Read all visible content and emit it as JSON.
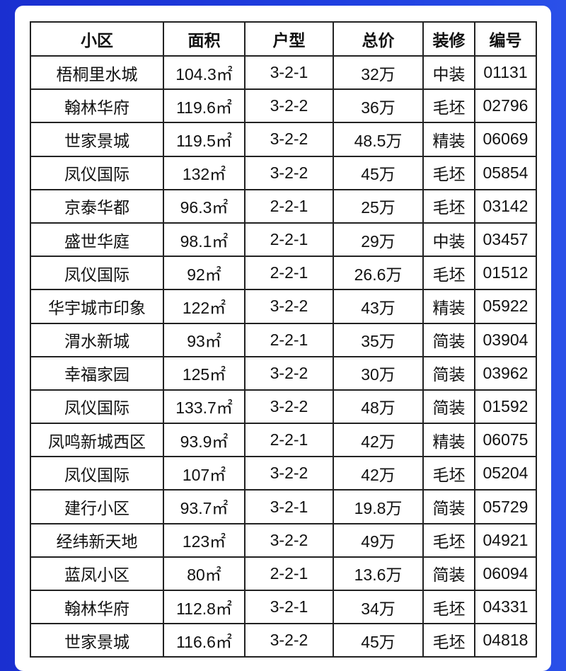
{
  "table": {
    "headers": [
      "小区",
      "面积",
      "户型",
      "总价",
      "装修",
      "编号"
    ],
    "rows": [
      [
        "梧桐里水城",
        "104.3㎡",
        "3-2-1",
        "32万",
        "中装",
        "01131"
      ],
      [
        "翰林华府",
        "119.6㎡",
        "3-2-2",
        "36万",
        "毛坯",
        "02796"
      ],
      [
        "世家景城",
        "119.5㎡",
        "3-2-2",
        "48.5万",
        "精装",
        "06069"
      ],
      [
        "凤仪国际",
        "132㎡",
        "3-2-2",
        "45万",
        "毛坯",
        "05854"
      ],
      [
        "京泰华都",
        "96.3㎡",
        "2-2-1",
        "25万",
        "毛坯",
        "03142"
      ],
      [
        "盛世华庭",
        "98.1㎡",
        "2-2-1",
        "29万",
        "中装",
        "03457"
      ],
      [
        "凤仪国际",
        "92㎡",
        "2-2-1",
        "26.6万",
        "毛坯",
        "01512"
      ],
      [
        "华宇城市印象",
        "122㎡",
        "3-2-2",
        "43万",
        "精装",
        "05922"
      ],
      [
        "渭水新城",
        "93㎡",
        "2-2-1",
        "35万",
        "简装",
        "03904"
      ],
      [
        "幸福家园",
        "125㎡",
        "3-2-2",
        "30万",
        "简装",
        "03962"
      ],
      [
        "凤仪国际",
        "133.7㎡",
        "3-2-2",
        "48万",
        "简装",
        "01592"
      ],
      [
        "凤鸣新城西区",
        "93.9㎡",
        "2-2-1",
        "42万",
        "精装",
        "06075"
      ],
      [
        "凤仪国际",
        "107㎡",
        "3-2-2",
        "42万",
        "毛坯",
        "05204"
      ],
      [
        "建行小区",
        "93.7㎡",
        "3-2-1",
        "19.8万",
        "简装",
        "05729"
      ],
      [
        "经纬新天地",
        "123㎡",
        "3-2-2",
        "49万",
        "毛坯",
        "04921"
      ],
      [
        "蓝凤小区",
        "80㎡",
        "2-2-1",
        "13.6万",
        "简装",
        "06094"
      ],
      [
        "翰林华府",
        "112.8㎡",
        "3-2-1",
        "34万",
        "毛坯",
        "04331"
      ],
      [
        "世家景城",
        "116.6㎡",
        "3-2-2",
        "45万",
        "毛坯",
        "04818"
      ]
    ]
  }
}
